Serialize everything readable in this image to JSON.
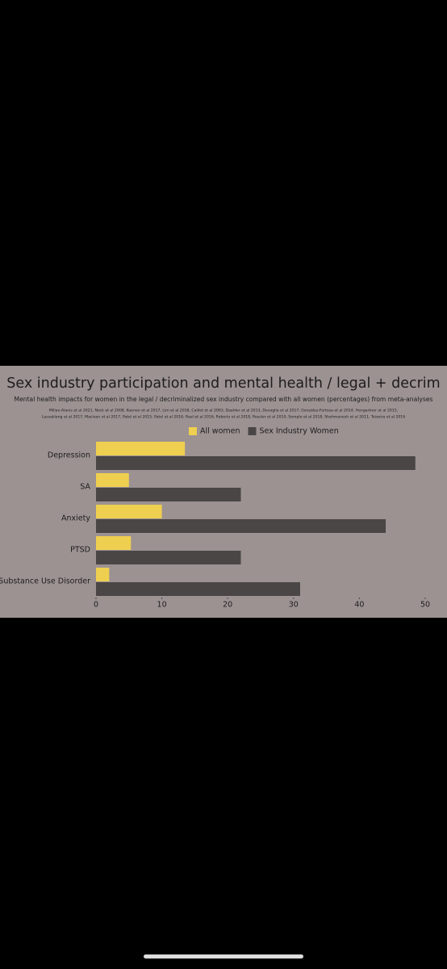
{
  "chart_data": {
    "type": "bar",
    "orientation": "horizontal",
    "title": "Sex industry participation and mental health / legal + decrim",
    "subtitle": "Mental health impacts for women in the legal / decriminalized sex industry compared with all women (percentages) from meta-analyses",
    "sources": [
      "Millan-Alanis et al 2021, Nock et al 2008, Koenen et al 2017, Lim et al 2018, Caillet et al 2003, Daalder et al 2013, Devoglio et al 2017, González-Fortoza et al 2014, Hengartner et al 2015,",
      "Lassaklang et al 2017, Maclean et al 2017, Patel et al 2015, Patel et al 2016, Rael et al 2016, Roberts et al 2018, Rossler et al 2010, Semple et al 2018, Shahmanesh et al 2011, Teixeira et al 2016"
    ],
    "categories": [
      "Depression",
      "SA",
      "Anxiety",
      "PTSD",
      "Substance Use Disorder"
    ],
    "series": [
      {
        "name": "All women",
        "color": "#efcf4f",
        "values": [
          13.5,
          5,
          10,
          5.3,
          2
        ]
      },
      {
        "name": "Sex Industry Women",
        "color": "#4a4646",
        "values": [
          48.5,
          22,
          44,
          22,
          31
        ]
      }
    ],
    "xlim": [
      0,
      50
    ],
    "xticks": [
      0,
      10,
      20,
      30,
      40,
      50
    ]
  }
}
